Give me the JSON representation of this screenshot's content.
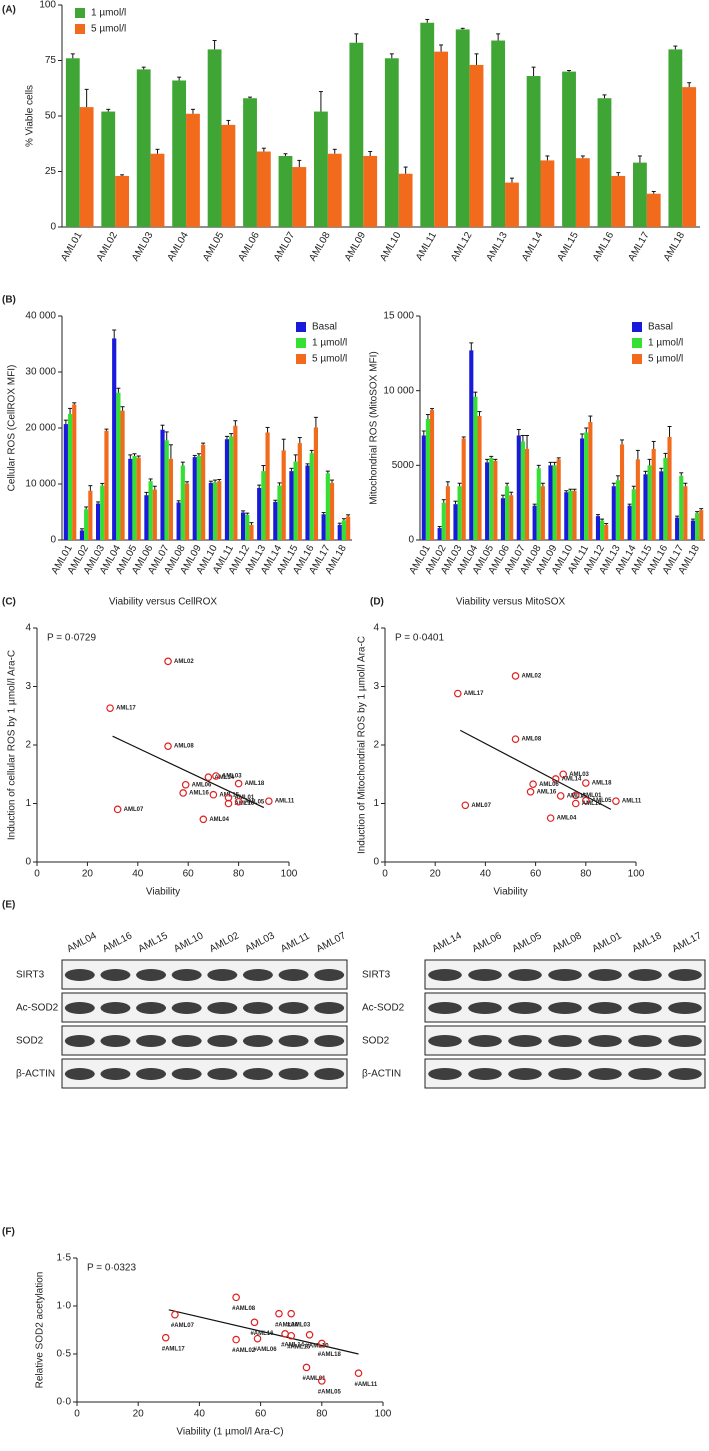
{
  "chart_data": [
    {
      "label": "(A)",
      "type": "bar",
      "ylabel": "% Viable cells",
      "categories": [
        "AML01",
        "AML02",
        "AML03",
        "AML04",
        "AML05",
        "AML06",
        "AML07",
        "AML08",
        "AML09",
        "AML10",
        "AML11",
        "AML12",
        "AML13",
        "AML14",
        "AML15",
        "AML16",
        "AML17",
        "AML18"
      ],
      "series": [
        {
          "name": "1 µmol/l",
          "color": "#3fa535",
          "values": [
            76,
            52,
            71,
            66,
            80,
            58,
            32,
            52,
            83,
            76,
            92,
            89,
            84,
            68,
            70,
            58,
            29,
            80
          ],
          "errors": [
            2,
            1,
            1,
            1.5,
            4,
            0.5,
            1,
            9,
            4,
            2,
            1.5,
            0.5,
            3,
            4,
            0.5,
            1.5,
            3,
            1.5
          ]
        },
        {
          "name": "5 µmol/l",
          "color": "#f26b1d",
          "values": [
            54,
            23,
            33,
            51,
            46,
            34,
            27,
            33,
            32,
            24,
            79,
            73,
            20,
            30,
            31,
            23,
            15,
            63
          ],
          "errors": [
            8,
            0.5,
            2,
            2,
            2,
            1.5,
            3,
            2,
            2,
            3,
            3,
            5,
            2,
            2,
            1,
            1.5,
            1,
            2
          ]
        }
      ],
      "ylim": [
        0,
        100
      ],
      "yticks": [
        0,
        25,
        50,
        75,
        100
      ]
    },
    {
      "label": "(B)",
      "type": "bar",
      "ylabel": "Cellular ROS (CellROX MFI)",
      "categories": [
        "AML01",
        "AML02",
        "AML03",
        "AML04",
        "AML05",
        "AML06",
        "AML07",
        "AML08",
        "AML09",
        "AML10",
        "AML11",
        "AML12",
        "AML13",
        "AML14",
        "AML15",
        "AML16",
        "AML17",
        "AML18"
      ],
      "series": [
        {
          "name": "Basal",
          "color": "#1a1adb",
          "values": [
            20700,
            1700,
            6500,
            36000,
            14500,
            8000,
            19700,
            6700,
            14800,
            10200,
            18000,
            4900,
            9300,
            6800,
            12300,
            13300,
            4600,
            2700
          ],
          "errors": [
            700,
            300,
            300,
            1500,
            700,
            500,
            800,
            300,
            300,
            300,
            500,
            300,
            500,
            300,
            500,
            300,
            300,
            300
          ]
        },
        {
          "name": "1 µmol/l",
          "color": "#33e033",
          "values": [
            22500,
            5500,
            9700,
            26300,
            15000,
            10500,
            17800,
            13300,
            15000,
            10300,
            18500,
            4500,
            12300,
            9700,
            14000,
            15500,
            11900,
            3500
          ],
          "errors": [
            1000,
            400,
            400,
            800,
            400,
            400,
            1500,
            600,
            400,
            400,
            500,
            300,
            1000,
            500,
            1200,
            500,
            400,
            300
          ]
        },
        {
          "name": "5 µmol/l",
          "color": "#f26b1d",
          "values": [
            24200,
            8800,
            19500,
            23100,
            14700,
            9000,
            14500,
            10100,
            17000,
            10500,
            20400,
            2700,
            19200,
            16000,
            17300,
            20100,
            10200,
            4200
          ],
          "errors": [
            300,
            900,
            300,
            700,
            300,
            600,
            2500,
            300,
            300,
            300,
            900,
            400,
            900,
            2000,
            1000,
            1800,
            500,
            300
          ]
        }
      ],
      "ylim": [
        0,
        40000
      ],
      "yticks": [
        0,
        {
          "value": 10000,
          "label": "10 000"
        },
        {
          "value": 20000,
          "label": "20 000"
        },
        {
          "value": 30000,
          "label": "30 000"
        },
        {
          "value": 40000,
          "label": "40 000"
        }
      ]
    },
    {
      "type": "bar",
      "ylabel": "Mitochondrial ROS (MitoSOX MFI)",
      "categories": [
        "AML01",
        "AML02",
        "AML03",
        "AML04",
        "AML05",
        "AML06",
        "AML07",
        "AML08",
        "AML09",
        "AML10",
        "AML11",
        "AML12",
        "AML13",
        "AML14",
        "AML15",
        "AML16",
        "AML17",
        "AML18"
      ],
      "series": [
        {
          "name": "Basal",
          "color": "#1a1adb",
          "values": [
            7000,
            800,
            2400,
            12700,
            5200,
            2800,
            7000,
            2300,
            5000,
            3200,
            6800,
            1600,
            3600,
            2300,
            4400,
            4600,
            1500,
            1300
          ],
          "errors": [
            300,
            100,
            200,
            500,
            200,
            200,
            400,
            100,
            200,
            100,
            300,
            100,
            200,
            100,
            200,
            200,
            100,
            100
          ]
        },
        {
          "name": "1 µmol/l",
          "color": "#33e033",
          "values": [
            8100,
            2500,
            3600,
            9600,
            5500,
            3600,
            6600,
            4800,
            5000,
            3300,
            7200,
            1300,
            4000,
            3400,
            5000,
            5500,
            4300,
            1800
          ],
          "errors": [
            300,
            200,
            200,
            300,
            100,
            200,
            400,
            200,
            200,
            100,
            300,
            100,
            300,
            200,
            400,
            300,
            200,
            100
          ]
        },
        {
          "name": "5 µmol/l",
          "color": "#f26b1d",
          "values": [
            8700,
            3600,
            6800,
            8300,
            5300,
            3000,
            6100,
            3600,
            5400,
            3300,
            7900,
            1000,
            6400,
            5400,
            6100,
            6900,
            3600,
            2000
          ],
          "errors": [
            100,
            300,
            100,
            300,
            100,
            200,
            900,
            200,
            100,
            100,
            400,
            100,
            300,
            600,
            500,
            700,
            200,
            100
          ]
        }
      ],
      "ylim": [
        0,
        15000
      ],
      "yticks": [
        0,
        5000,
        {
          "value": 10000,
          "label": "10 000"
        },
        {
          "value": 15000,
          "label": "15 000"
        }
      ]
    },
    {
      "label": "(C)",
      "type": "scatter",
      "title": "Viability versus CellROX",
      "annotation": "P = 0·0729",
      "xlabel": "Viability",
      "ylabel": "Induction of cellular ROS by 1 µmol/l Ara-C",
      "color": "#e02020",
      "point_labels": [
        "AML02",
        "AML17",
        "AML08",
        "AML14",
        "AML03",
        "AML18",
        "AML06",
        "AML15",
        "AML16",
        "AML01",
        "AML10",
        "AML05",
        "AML11",
        "AML07",
        "AML04"
      ],
      "x": [
        52,
        29,
        52,
        68,
        71,
        80,
        59,
        70,
        58,
        76,
        76,
        80,
        92,
        32,
        66
      ],
      "values": [
        3.43,
        2.63,
        1.98,
        1.45,
        1.47,
        1.34,
        1.32,
        1.15,
        1.18,
        1.1,
        1.0,
        1.03,
        1.04,
        0.9,
        0.73
      ],
      "trendline": {
        "x": [
          30,
          90
        ],
        "values": [
          2.15,
          0.93
        ]
      },
      "xlim": [
        0,
        100
      ],
      "xticks": [
        0,
        20,
        40,
        60,
        80,
        100
      ],
      "ylim": [
        0,
        4
      ],
      "yticks": [
        0,
        1,
        2,
        3,
        4
      ]
    },
    {
      "label": "(D)",
      "type": "scatter",
      "title": "Viability versus MitoSOX",
      "annotation": "P = 0·0401",
      "xlabel": "Viability",
      "ylabel": "Induction of Mitochondrial ROS by 1 µmol/l Ara-C",
      "color": "#e02020",
      "point_labels": [
        "AML02",
        "AML17",
        "AML08",
        "AML03",
        "AML14",
        "AML18",
        "AML06",
        "AML16",
        "AML01",
        "AML15",
        "AML05",
        "AML10",
        "AML11",
        "AML07",
        "AML04"
      ],
      "x": [
        52,
        29,
        52,
        71,
        68,
        80,
        59,
        58,
        76,
        70,
        80,
        76,
        92,
        32,
        66
      ],
      "values": [
        3.18,
        2.88,
        2.1,
        1.5,
        1.42,
        1.35,
        1.33,
        1.2,
        1.14,
        1.13,
        1.05,
        1.0,
        1.04,
        0.97,
        0.75
      ],
      "trendline": {
        "x": [
          30,
          90
        ],
        "values": [
          2.25,
          0.9
        ]
      },
      "xlim": [
        0,
        100
      ],
      "xticks": [
        0,
        20,
        40,
        60,
        80,
        100
      ],
      "ylim": [
        0,
        4
      ],
      "yticks": [
        0,
        1,
        2,
        3,
        4
      ]
    },
    {
      "label": "(F)",
      "type": "scatter",
      "annotation": "P = 0·0323",
      "xlabel": "Viability (1 µmol/l Ara-C)",
      "ylabel": "Relative SOD2 acetylation",
      "color": "#e02020",
      "point_labels": [
        "#AML08",
        "#AML04",
        "#AML03",
        "#AML07",
        "#AML16",
        "#AML14",
        "#AML10",
        "#AML15",
        "#AML18",
        "#AML17",
        "#AML02",
        "#AML06",
        "#AML01",
        "#AML11",
        "#AML05"
      ],
      "x": [
        52,
        66,
        70,
        32,
        58,
        68,
        76,
        70,
        80,
        29,
        52,
        59,
        75,
        92,
        80
      ],
      "values": [
        1.09,
        0.92,
        0.92,
        0.91,
        0.83,
        0.71,
        0.7,
        0.69,
        0.61,
        0.67,
        0.65,
        0.66,
        0.36,
        0.3,
        0.22
      ],
      "trendline": {
        "x": [
          30,
          92
        ],
        "values": [
          0.96,
          0.5
        ]
      },
      "xlim": [
        0,
        100
      ],
      "xticks": [
        0,
        20,
        40,
        60,
        80,
        100
      ],
      "ylim": [
        0,
        1.5
      ],
      "yticks": [
        {
          "value": 0,
          "label": "0·0"
        },
        {
          "value": 0.5,
          "label": "0·5"
        },
        {
          "value": 1,
          "label": "1·0"
        },
        {
          "value": 1.5,
          "label": "1·5"
        }
      ]
    }
  ],
  "blots": {
    "label": "(E)",
    "panels": [
      {
        "columns": [
          "AML04",
          "AML16",
          "AML15",
          "AML10",
          "AML02",
          "AML03",
          "AML11",
          "AML07"
        ],
        "rows": [
          "SIRT3",
          "Ac-SOD2",
          "SOD2",
          "β-ACTIN"
        ]
      },
      {
        "columns": [
          "AML14",
          "AML06",
          "AML05",
          "AML08",
          "AML01",
          "AML18",
          "AML17"
        ],
        "rows": [
          "SIRT3",
          "Ac-SOD2",
          "SOD2",
          "β-ACTIN"
        ]
      }
    ]
  }
}
